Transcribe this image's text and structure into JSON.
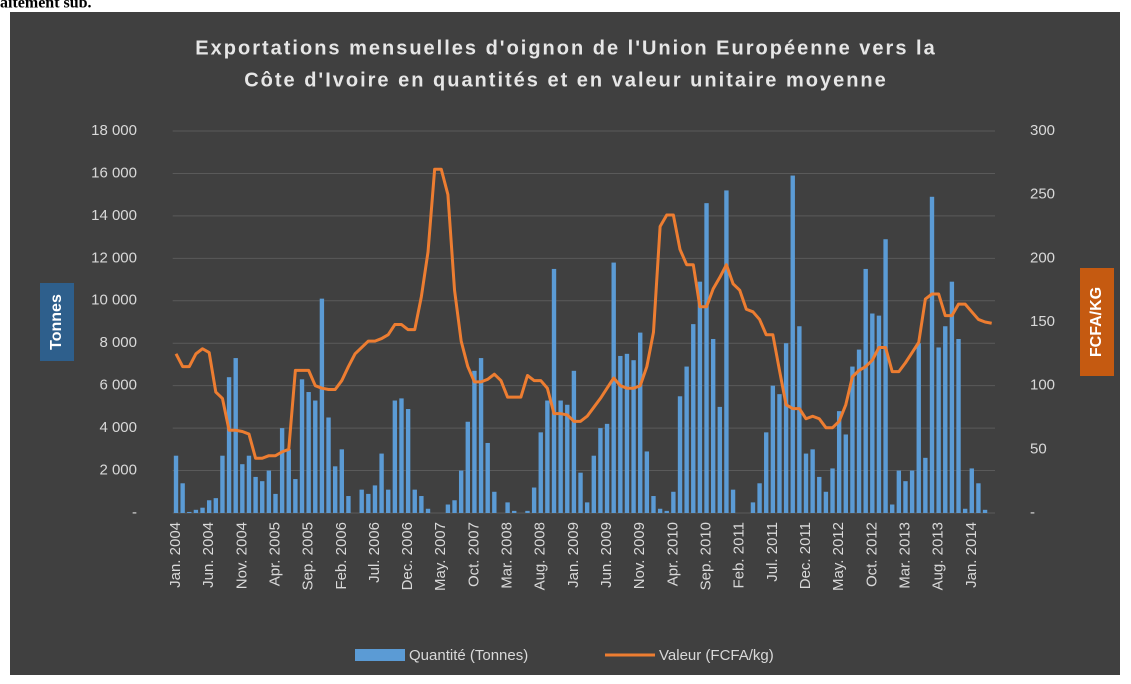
{
  "caption_fragment": "aitement sub.",
  "chart_data": {
    "type": "bar_line",
    "title": [
      "Exportations mensuelles d'oignon de l'Union Européenne vers la",
      "Côte d'Ivoire en quantités et en valeur unitaire moyenne"
    ],
    "y_label": "Tonnes",
    "y2_label": "FCFA/KG",
    "categories": [
      "Jan. 2004",
      null,
      null,
      null,
      null,
      "Jun. 2004",
      null,
      null,
      null,
      null,
      "Nov. 2004",
      null,
      null,
      null,
      null,
      "Apr. 2005",
      null,
      null,
      null,
      null,
      "Sep. 2005",
      null,
      null,
      null,
      null,
      "Feb. 2006",
      null,
      null,
      null,
      null,
      "Jul. 2006",
      null,
      null,
      null,
      null,
      "Dec. 2006",
      null,
      null,
      null,
      null,
      "May. 2007",
      null,
      null,
      null,
      null,
      "Oct. 2007",
      null,
      null,
      null,
      null,
      "Mar. 2008",
      null,
      null,
      null,
      null,
      "Aug. 2008",
      null,
      null,
      null,
      null,
      "Jan. 2009",
      null,
      null,
      null,
      null,
      "Jun. 2009",
      null,
      null,
      null,
      null,
      "Nov. 2009",
      null,
      null,
      null,
      null,
      "Apr. 2010",
      null,
      null,
      null,
      null,
      "Sep. 2010",
      null,
      null,
      null,
      null,
      "Feb. 2011",
      null,
      null,
      null,
      null,
      "Jul. 2011",
      null,
      null,
      null,
      null,
      "Dec. 2011",
      null,
      null,
      null,
      null,
      "May. 2012",
      null,
      null,
      null,
      null,
      "Oct. 2012",
      null,
      null,
      null,
      null,
      "Mar. 2013",
      null,
      null,
      null,
      null,
      "Aug. 2013",
      null,
      null,
      null,
      null,
      "Jan. 2014",
      null,
      null,
      null
    ],
    "series": [
      {
        "name": "Quantité (Tonnes)",
        "type": "bar",
        "color": "#5b9bd5",
        "values": [
          2700,
          1400,
          50,
          150,
          250,
          600,
          700,
          2700,
          6400,
          7300,
          2300,
          2700,
          1700,
          1500,
          2000,
          900,
          4000,
          3000,
          1600,
          6300,
          5700,
          5300,
          10100,
          4500,
          2200,
          3000,
          800,
          0,
          1100,
          900,
          1300,
          2800,
          1100,
          5300,
          5400,
          4900,
          1100,
          800,
          200,
          0,
          0,
          400,
          600,
          2000,
          4300,
          6700,
          7300,
          3300,
          1000,
          0,
          500,
          100,
          0,
          100,
          1200,
          3800,
          5300,
          11500,
          5300,
          5100,
          6700,
          1900,
          500,
          2700,
          4000,
          4200,
          11800,
          7400,
          7500,
          7200,
          8500,
          2900,
          800,
          200,
          100,
          1000,
          5500,
          6900,
          8900,
          10900,
          14600,
          8200,
          5000,
          15200,
          1100,
          0,
          0,
          500,
          1400,
          3800,
          6000,
          5600,
          8000,
          15900,
          8800,
          2800,
          3000,
          1700,
          1000,
          2100,
          4800,
          3700,
          6900,
          7700,
          11500,
          9400,
          9300,
          12900,
          400,
          2000,
          1500,
          2000,
          8000,
          2600,
          14900,
          7800,
          8800,
          10900,
          8200,
          200,
          2100,
          1400,
          150,
          0
        ]
      },
      {
        "name": "Valeur (FCFA/kg)",
        "type": "line",
        "axis": "y2",
        "color": "#ed7d31",
        "values": [
          125,
          115,
          115,
          125,
          129,
          126,
          95,
          90,
          65,
          65,
          64,
          62,
          43,
          43,
          45,
          45,
          48,
          50,
          112,
          112,
          112,
          100,
          98,
          97,
          97,
          104,
          115,
          125,
          130,
          135,
          135,
          137,
          140,
          148,
          148,
          144,
          144,
          170,
          205,
          270,
          270,
          250,
          175,
          135,
          115,
          103,
          103,
          105,
          109,
          104,
          91,
          91,
          91,
          108,
          104,
          104,
          98,
          78,
          78,
          77,
          72,
          72,
          76,
          83,
          90,
          98,
          106,
          100,
          98,
          98,
          100,
          115,
          142,
          225,
          234,
          234,
          207,
          195,
          195,
          162,
          162,
          176,
          185,
          195,
          180,
          175,
          160,
          158,
          152,
          140,
          140,
          112,
          85,
          82,
          82,
          74,
          76,
          74,
          67,
          67,
          72,
          85,
          107,
          112,
          115,
          120,
          130,
          130,
          111,
          111,
          118,
          126,
          134,
          168,
          172,
          172,
          155,
          155,
          164,
          164,
          158,
          152,
          150,
          149
        ]
      }
    ],
    "ylim": [
      0,
      18000
    ],
    "yticks": [
      {
        "value": 0,
        "label": "-"
      },
      {
        "value": 2000,
        "label": "2 000"
      },
      {
        "value": 4000,
        "label": "4 000"
      },
      {
        "value": 6000,
        "label": "6 000"
      },
      {
        "value": 8000,
        "label": "8 000"
      },
      {
        "value": 10000,
        "label": "10 000"
      },
      {
        "value": 12000,
        "label": "12 000"
      },
      {
        "value": 14000,
        "label": "14 000"
      },
      {
        "value": 16000,
        "label": "16 000"
      },
      {
        "value": 18000,
        "label": "18 000"
      }
    ],
    "y2lim": [
      0,
      300
    ],
    "y2ticks": [
      {
        "value": 0,
        "label": "-"
      },
      50,
      100,
      150,
      200,
      250,
      300
    ],
    "grid": true,
    "legend": "bottom"
  }
}
